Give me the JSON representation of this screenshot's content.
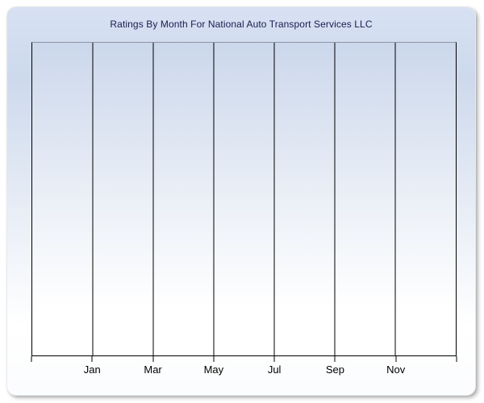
{
  "window": {
    "title": "Ratings By Month For National Auto Transport Services LLC"
  },
  "colors": {
    "panel_top": "#d7e1f3",
    "panel_mid": "#cdd9ec",
    "panel_bottom": "#fbfcfe",
    "plot_top": "#cbd7eb",
    "plot_bottom": "#ffffff",
    "plot_top_border": "#8f96a3",
    "grid_line": "#000000",
    "title_text": "#1b1b4f",
    "axis_text": "#000000"
  },
  "chart_data": {
    "type": "line",
    "title": "Ratings By Month For National Auto Transport Services LLC",
    "xlabel": "",
    "ylabel": "",
    "x_tick_labels": [
      "Jan",
      "Mar",
      "May",
      "Jul",
      "Sep",
      "Nov"
    ],
    "series": [],
    "values_plotted": "none - plot area is empty, no data points, bars or lines rendered",
    "y_axis": "no y-axis ticks or labels visible",
    "grid": "vertical gridlines only, one at each labeled month plus both plot edges (8 lines total)",
    "legend": "none"
  }
}
